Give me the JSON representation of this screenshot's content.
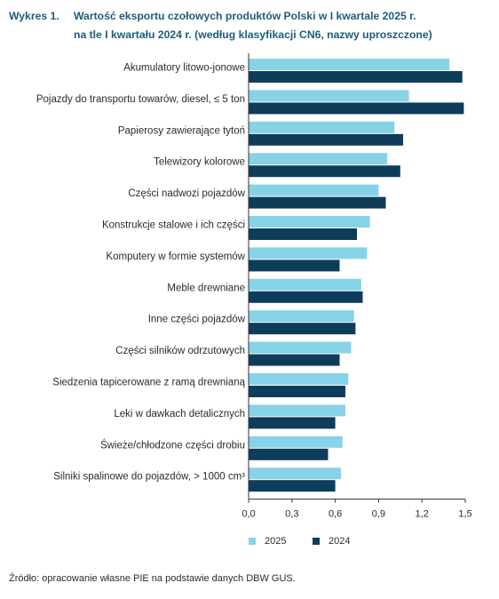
{
  "title": {
    "label": "Wykres 1.",
    "line1": "Wartość eksportu czołowych produktów Polski w I kwartale 2025 r.",
    "line2": "na tle I kwartału 2024 r. (według klasyfikacji CN6, nazwy uproszczone)"
  },
  "source": "Źródło: opracowanie własne PIE na podstawie danych DBW GUS.",
  "colors": {
    "series_2025": "#86d3e8",
    "series_2024": "#0e3d5c",
    "axis": "#333333"
  },
  "chart_data": {
    "type": "bar",
    "orientation": "horizontal",
    "categories": [
      "Akumulatory litowo-jonowe",
      "Pojazdy do transportu towarów, diesel, ≤ 5 ton",
      "Papierosy zawierające tytoń",
      "Telewizory kolorowe",
      "Części nadwozi pojazdów",
      "Konstrukcje stalowe i ich części",
      "Komputery w formie systemów",
      "Meble drewniane",
      "Inne części pojazdów",
      "Części silników odrzutowych",
      "Siedzenia tapicerowane z ramą drewnianą",
      "Leki w dawkach detalicznych",
      "Świeże/chłodzone części drobiu",
      "Silniki spalinowe do pojazdów, > 1000 cm³"
    ],
    "series": [
      {
        "name": "2025",
        "values": [
          1.39,
          1.11,
          1.01,
          0.96,
          0.9,
          0.84,
          0.82,
          0.78,
          0.73,
          0.71,
          0.69,
          0.67,
          0.65,
          0.64
        ]
      },
      {
        "name": "2024",
        "values": [
          1.48,
          1.49,
          1.07,
          1.05,
          0.95,
          0.75,
          0.63,
          0.79,
          0.74,
          0.63,
          0.67,
          0.6,
          0.55,
          0.6
        ]
      }
    ],
    "xlim": [
      0,
      1.5
    ],
    "xticks": [
      "0,0",
      "0,3",
      "0,6",
      "0,9",
      "1,2",
      "1,5"
    ],
    "grid": false,
    "legend_position": "bottom"
  }
}
